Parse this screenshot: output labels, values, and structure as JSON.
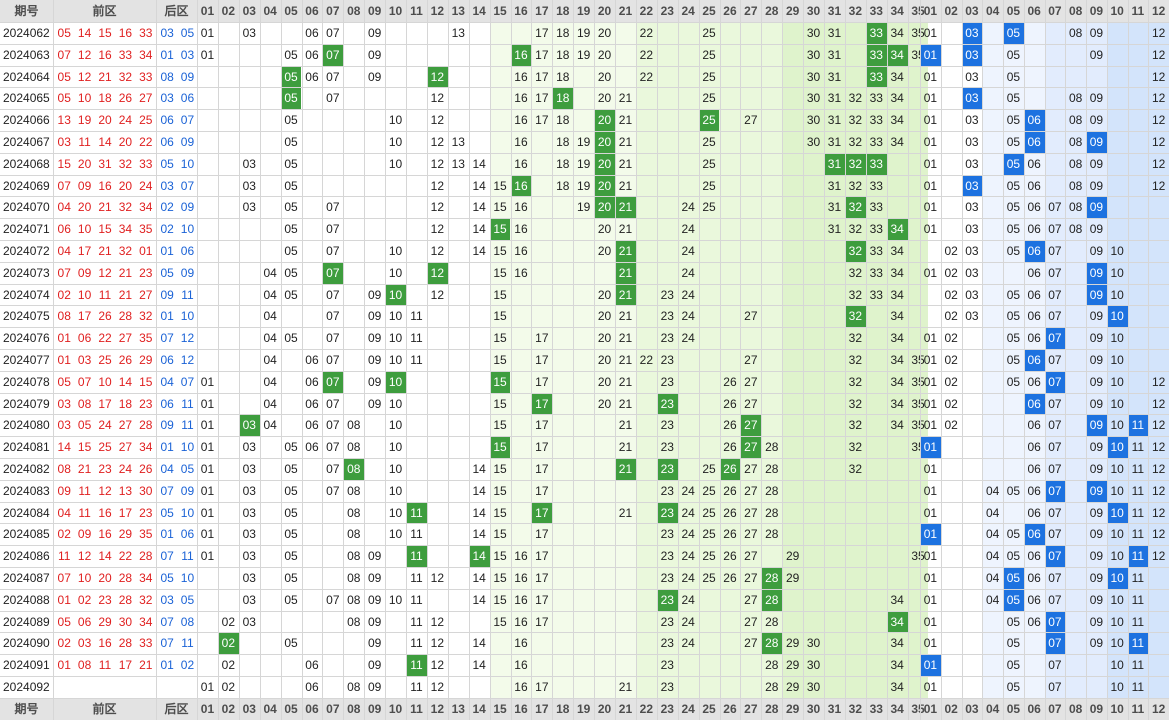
{
  "header": {
    "period_label": "期号",
    "front_label": "前区",
    "back_label": "后区",
    "front_cols": [
      "01",
      "02",
      "03",
      "04",
      "05",
      "06",
      "07",
      "08",
      "09",
      "10",
      "11",
      "12",
      "13",
      "14",
      "15",
      "16",
      "17",
      "18",
      "19",
      "20",
      "21",
      "22",
      "23",
      "24",
      "25",
      "26",
      "27",
      "28",
      "29",
      "30",
      "31",
      "32",
      "33",
      "34",
      "35"
    ],
    "back_cols": [
      "01",
      "02",
      "03",
      "04",
      "05",
      "06",
      "07",
      "08",
      "09",
      "10",
      "11",
      "12"
    ]
  },
  "rows": [
    {
      "period": "2024062",
      "front": [
        "05",
        "14",
        "15",
        "16",
        "33"
      ],
      "back": [
        "03",
        "05"
      ],
      "fcells": [
        1,
        3,
        6,
        7,
        9,
        13,
        17,
        18,
        19,
        20,
        22,
        25,
        30,
        31,
        33,
        34,
        35
      ],
      "fhits": [
        33
      ],
      "bcells": [
        1,
        3,
        5,
        8,
        9,
        12
      ],
      "bhits": [
        3,
        5
      ]
    },
    {
      "period": "2024063",
      "front": [
        "07",
        "12",
        "16",
        "33",
        "34"
      ],
      "back": [
        "01",
        "03"
      ],
      "fcells": [
        1,
        5,
        6,
        7,
        9,
        16,
        17,
        18,
        19,
        20,
        22,
        25,
        30,
        31,
        33,
        34,
        35
      ],
      "fhits": [
        7,
        16,
        33,
        34
      ],
      "bcells": [
        1,
        3,
        5,
        9,
        12
      ],
      "bhits": [
        1,
        3
      ]
    },
    {
      "period": "2024064",
      "front": [
        "05",
        "12",
        "21",
        "32",
        "33"
      ],
      "back": [
        "08",
        "09"
      ],
      "fcells": [
        5,
        6,
        7,
        9,
        12,
        16,
        17,
        18,
        20,
        22,
        25,
        30,
        31,
        33,
        34
      ],
      "fhits": [
        5,
        12,
        33
      ],
      "bcells": [
        1,
        3,
        5,
        12
      ],
      "bhits": []
    },
    {
      "period": "2024065",
      "front": [
        "05",
        "10",
        "18",
        "26",
        "27"
      ],
      "back": [
        "03",
        "06"
      ],
      "fcells": [
        5,
        7,
        12,
        16,
        17,
        18,
        20,
        21,
        25,
        30,
        31,
        32,
        33,
        34
      ],
      "fhits": [
        5,
        18
      ],
      "bcells": [
        1,
        3,
        5,
        8,
        9,
        12
      ],
      "bhits": [
        3
      ]
    },
    {
      "period": "2024066",
      "front": [
        "13",
        "19",
        "20",
        "24",
        "25"
      ],
      "back": [
        "06",
        "07"
      ],
      "fcells": [
        5,
        10,
        12,
        16,
        17,
        18,
        20,
        21,
        25,
        27,
        30,
        31,
        32,
        33,
        34
      ],
      "fhits": [
        20,
        25
      ],
      "bcells": [
        1,
        3,
        5,
        6,
        8,
        9,
        12
      ],
      "bhits": [
        6
      ]
    },
    {
      "period": "2024067",
      "front": [
        "03",
        "11",
        "14",
        "20",
        "22"
      ],
      "back": [
        "06",
        "09"
      ],
      "fcells": [
        5,
        10,
        12,
        13,
        16,
        18,
        19,
        20,
        21,
        25,
        30,
        31,
        32,
        33,
        34
      ],
      "fhits": [
        20
      ],
      "bcells": [
        1,
        3,
        5,
        6,
        8,
        9,
        12
      ],
      "bhits": [
        6,
        9
      ]
    },
    {
      "period": "2024068",
      "front": [
        "15",
        "20",
        "31",
        "32",
        "33"
      ],
      "back": [
        "05",
        "10"
      ],
      "fcells": [
        3,
        5,
        10,
        12,
        13,
        14,
        16,
        18,
        19,
        20,
        21,
        25,
        31,
        32,
        33
      ],
      "fhits": [
        20,
        31,
        32,
        33
      ],
      "bcells": [
        1,
        3,
        5,
        6,
        8,
        9,
        12
      ],
      "bhits": [
        5
      ]
    },
    {
      "period": "2024069",
      "front": [
        "07",
        "09",
        "16",
        "20",
        "24"
      ],
      "back": [
        "03",
        "07"
      ],
      "fcells": [
        3,
        5,
        12,
        14,
        15,
        16,
        18,
        19,
        20,
        21,
        25,
        31,
        32,
        33
      ],
      "fhits": [
        16,
        20
      ],
      "bcells": [
        1,
        3,
        5,
        6,
        8,
        9,
        12
      ],
      "bhits": [
        3
      ]
    },
    {
      "period": "2024070",
      "front": [
        "04",
        "20",
        "21",
        "32",
        "34"
      ],
      "back": [
        "02",
        "09"
      ],
      "fcells": [
        3,
        5,
        7,
        12,
        14,
        15,
        16,
        19,
        20,
        21,
        24,
        25,
        31,
        32,
        33
      ],
      "fhits": [
        20,
        21,
        32
      ],
      "bcells": [
        1,
        3,
        5,
        6,
        7,
        8,
        9
      ],
      "bhits": [
        9
      ]
    },
    {
      "period": "2024071",
      "front": [
        "06",
        "10",
        "15",
        "34",
        "35"
      ],
      "back": [
        "02",
        "10"
      ],
      "fcells": [
        5,
        7,
        12,
        14,
        15,
        16,
        20,
        21,
        24,
        31,
        32,
        33,
        34
      ],
      "fhits": [
        15,
        34
      ],
      "bcells": [
        1,
        3,
        5,
        6,
        7,
        8,
        9
      ],
      "bhits": []
    },
    {
      "period": "2024072",
      "front": [
        "04",
        "17",
        "21",
        "32",
        "01"
      ],
      "back": [
        "01",
        "06"
      ],
      "fcells": [
        5,
        7,
        10,
        12,
        14,
        15,
        16,
        20,
        21,
        24,
        32,
        33,
        34
      ],
      "fhits": [
        21,
        32
      ],
      "bcells": [
        2,
        3,
        5,
        6,
        7,
        9,
        10
      ],
      "bhits": [
        6
      ]
    },
    {
      "period": "2024073",
      "front": [
        "07",
        "09",
        "12",
        "21",
        "23"
      ],
      "back": [
        "05",
        "09"
      ],
      "fcells": [
        4,
        5,
        7,
        10,
        12,
        15,
        16,
        21,
        24,
        32,
        33,
        34
      ],
      "fhits": [
        7,
        12,
        21
      ],
      "bcells": [
        1,
        2,
        3,
        6,
        7,
        9,
        10
      ],
      "bhits": [
        9
      ]
    },
    {
      "period": "2024074",
      "front": [
        "02",
        "10",
        "11",
        "21",
        "27"
      ],
      "back": [
        "09",
        "11"
      ],
      "fcells": [
        4,
        5,
        7,
        9,
        10,
        12,
        15,
        20,
        21,
        23,
        24,
        32,
        33,
        34
      ],
      "fhits": [
        10,
        21
      ],
      "bcells": [
        2,
        3,
        5,
        6,
        7,
        9,
        10
      ],
      "bhits": [
        9
      ]
    },
    {
      "period": "2024075",
      "front": [
        "08",
        "17",
        "26",
        "28",
        "32"
      ],
      "back": [
        "01",
        "10"
      ],
      "fcells": [
        4,
        7,
        9,
        10,
        11,
        15,
        20,
        21,
        23,
        24,
        27,
        32,
        34
      ],
      "fhits": [
        32
      ],
      "bcells": [
        2,
        3,
        5,
        6,
        7,
        9,
        10
      ],
      "bhits": [
        10
      ]
    },
    {
      "period": "2024076",
      "front": [
        "01",
        "06",
        "22",
        "27",
        "35"
      ],
      "back": [
        "07",
        "12"
      ],
      "fcells": [
        4,
        5,
        7,
        9,
        10,
        11,
        15,
        17,
        20,
        21,
        23,
        24,
        32,
        34
      ],
      "fhits": [],
      "bcells": [
        1,
        2,
        5,
        6,
        7,
        9,
        10
      ],
      "bhits": [
        7
      ]
    },
    {
      "period": "2024077",
      "front": [
        "01",
        "03",
        "25",
        "26",
        "29"
      ],
      "back": [
        "06",
        "12"
      ],
      "fcells": [
        4,
        6,
        7,
        9,
        10,
        11,
        15,
        17,
        20,
        21,
        22,
        23,
        27,
        32,
        34,
        35
      ],
      "fhits": [],
      "bcells": [
        1,
        2,
        5,
        6,
        7,
        9,
        10
      ],
      "bhits": [
        6
      ]
    },
    {
      "period": "2024078",
      "front": [
        "05",
        "07",
        "10",
        "14",
        "15"
      ],
      "back": [
        "04",
        "07"
      ],
      "fcells": [
        1,
        4,
        6,
        7,
        9,
        10,
        15,
        17,
        20,
        21,
        23,
        26,
        27,
        32,
        34,
        35
      ],
      "fhits": [
        7,
        10,
        15
      ],
      "bcells": [
        1,
        2,
        5,
        6,
        7,
        9,
        10,
        12
      ],
      "bhits": [
        7
      ]
    },
    {
      "period": "2024079",
      "front": [
        "03",
        "08",
        "17",
        "18",
        "23"
      ],
      "back": [
        "06",
        "11"
      ],
      "fcells": [
        1,
        4,
        6,
        7,
        9,
        10,
        15,
        17,
        20,
        21,
        23,
        26,
        27,
        32,
        34,
        35
      ],
      "fhits": [
        17,
        23
      ],
      "bcells": [
        1,
        2,
        6,
        7,
        9,
        10,
        12
      ],
      "bhits": [
        6
      ]
    },
    {
      "period": "2024080",
      "front": [
        "03",
        "05",
        "24",
        "27",
        "28"
      ],
      "back": [
        "09",
        "11"
      ],
      "fcells": [
        1,
        3,
        4,
        6,
        7,
        8,
        10,
        15,
        17,
        21,
        23,
        26,
        27,
        32,
        34,
        35
      ],
      "fhits": [
        3,
        27
      ],
      "bcells": [
        1,
        2,
        6,
        7,
        9,
        10,
        11,
        12
      ],
      "bhits": [
        9,
        11
      ]
    },
    {
      "period": "2024081",
      "front": [
        "14",
        "15",
        "25",
        "27",
        "34"
      ],
      "back": [
        "01",
        "10"
      ],
      "fcells": [
        1,
        3,
        5,
        6,
        7,
        8,
        10,
        15,
        17,
        21,
        23,
        26,
        27,
        28,
        32,
        35
      ],
      "fhits": [
        15,
        27
      ],
      "bcells": [
        1,
        6,
        7,
        9,
        10,
        11,
        12
      ],
      "bhits": [
        1,
        10
      ]
    },
    {
      "period": "2024082",
      "front": [
        "08",
        "21",
        "23",
        "24",
        "26"
      ],
      "back": [
        "04",
        "05"
      ],
      "fcells": [
        1,
        3,
        5,
        7,
        8,
        10,
        14,
        15,
        17,
        21,
        23,
        25,
        26,
        27,
        28,
        32
      ],
      "fhits": [
        8,
        21,
        23,
        26
      ],
      "bcells": [
        1,
        6,
        7,
        9,
        10,
        11,
        12
      ],
      "bhits": []
    },
    {
      "period": "2024083",
      "front": [
        "09",
        "11",
        "12",
        "13",
        "30"
      ],
      "back": [
        "07",
        "09"
      ],
      "fcells": [
        1,
        3,
        5,
        7,
        8,
        10,
        14,
        15,
        17,
        23,
        24,
        25,
        26,
        27,
        28
      ],
      "fhits": [],
      "bcells": [
        1,
        4,
        5,
        6,
        7,
        9,
        10,
        11,
        12
      ],
      "bhits": [
        7,
        9
      ]
    },
    {
      "period": "2024084",
      "front": [
        "04",
        "11",
        "16",
        "17",
        "23"
      ],
      "back": [
        "05",
        "10"
      ],
      "fcells": [
        1,
        3,
        5,
        8,
        10,
        11,
        14,
        15,
        17,
        21,
        23,
        24,
        25,
        26,
        27,
        28
      ],
      "fhits": [
        11,
        17,
        23
      ],
      "bcells": [
        1,
        4,
        6,
        7,
        9,
        10,
        11,
        12
      ],
      "bhits": [
        10
      ]
    },
    {
      "period": "2024085",
      "front": [
        "02",
        "09",
        "16",
        "29",
        "35"
      ],
      "back": [
        "01",
        "06"
      ],
      "fcells": [
        1,
        3,
        5,
        8,
        10,
        11,
        14,
        15,
        17,
        23,
        24,
        25,
        26,
        27,
        28
      ],
      "fhits": [],
      "bcells": [
        1,
        4,
        5,
        6,
        7,
        9,
        10,
        11,
        12
      ],
      "bhits": [
        1,
        6
      ]
    },
    {
      "period": "2024086",
      "front": [
        "11",
        "12",
        "14",
        "22",
        "28"
      ],
      "back": [
        "07",
        "11"
      ],
      "fcells": [
        1,
        3,
        5,
        8,
        9,
        11,
        14,
        15,
        16,
        17,
        23,
        24,
        25,
        26,
        27,
        29,
        35
      ],
      "fhits": [
        11,
        14
      ],
      "bcells": [
        1,
        4,
        5,
        6,
        7,
        9,
        10,
        11,
        12
      ],
      "bhits": [
        7,
        11
      ]
    },
    {
      "period": "2024087",
      "front": [
        "07",
        "10",
        "20",
        "28",
        "34"
      ],
      "back": [
        "05",
        "10"
      ],
      "fcells": [
        3,
        5,
        8,
        9,
        11,
        12,
        14,
        15,
        16,
        17,
        23,
        24,
        25,
        26,
        27,
        28,
        29
      ],
      "fhits": [
        28
      ],
      "bcells": [
        1,
        4,
        5,
        6,
        7,
        9,
        10,
        11
      ],
      "bhits": [
        5,
        10
      ]
    },
    {
      "period": "2024088",
      "front": [
        "01",
        "02",
        "23",
        "28",
        "32"
      ],
      "back": [
        "03",
        "05"
      ],
      "fcells": [
        3,
        5,
        7,
        8,
        9,
        10,
        11,
        14,
        15,
        16,
        17,
        23,
        24,
        27,
        28,
        34
      ],
      "fhits": [
        23,
        28
      ],
      "bcells": [
        1,
        4,
        5,
        6,
        7,
        9,
        10,
        11
      ],
      "bhits": [
        5
      ]
    },
    {
      "period": "2024089",
      "front": [
        "05",
        "06",
        "29",
        "30",
        "34"
      ],
      "back": [
        "07",
        "08"
      ],
      "fcells": [
        2,
        3,
        8,
        9,
        11,
        12,
        15,
        16,
        17,
        23,
        24,
        27,
        28,
        34
      ],
      "fhits": [
        34
      ],
      "bcells": [
        1,
        5,
        6,
        7,
        9,
        10,
        11
      ],
      "bhits": [
        7
      ]
    },
    {
      "period": "2024090",
      "front": [
        "02",
        "03",
        "16",
        "28",
        "33"
      ],
      "back": [
        "07",
        "11"
      ],
      "fcells": [
        2,
        5,
        9,
        11,
        12,
        14,
        16,
        23,
        24,
        27,
        28,
        29,
        30,
        34
      ],
      "fhits": [
        2,
        28
      ],
      "bcells": [
        1,
        5,
        7,
        9,
        10,
        11
      ],
      "bhits": [
        7,
        11
      ]
    },
    {
      "period": "2024091",
      "front": [
        "01",
        "08",
        "11",
        "17",
        "21"
      ],
      "back": [
        "01",
        "02"
      ],
      "fcells": [
        2,
        6,
        9,
        11,
        12,
        14,
        16,
        23,
        28,
        29,
        30,
        34
      ],
      "fhits": [
        11
      ],
      "bcells": [
        1,
        5,
        7,
        10,
        11
      ],
      "bhits": [
        1
      ]
    },
    {
      "period": "2024092",
      "front": [],
      "back": [],
      "fcells": [
        1,
        2,
        6,
        8,
        9,
        11,
        12,
        16,
        17,
        21,
        23,
        28,
        29,
        30,
        34
      ],
      "fhits": [],
      "bcells": [
        1,
        5,
        7,
        10,
        11
      ],
      "bhits": []
    }
  ],
  "colors": {
    "front_hit": "#3e9d3e",
    "back_hit": "#1d72e0",
    "front_red": "#e02020",
    "back_blue": "#1a62d6",
    "band_green": "#eef9e1",
    "band_blue": "#e6f0fd",
    "header_bg": "#e3e3e3"
  }
}
